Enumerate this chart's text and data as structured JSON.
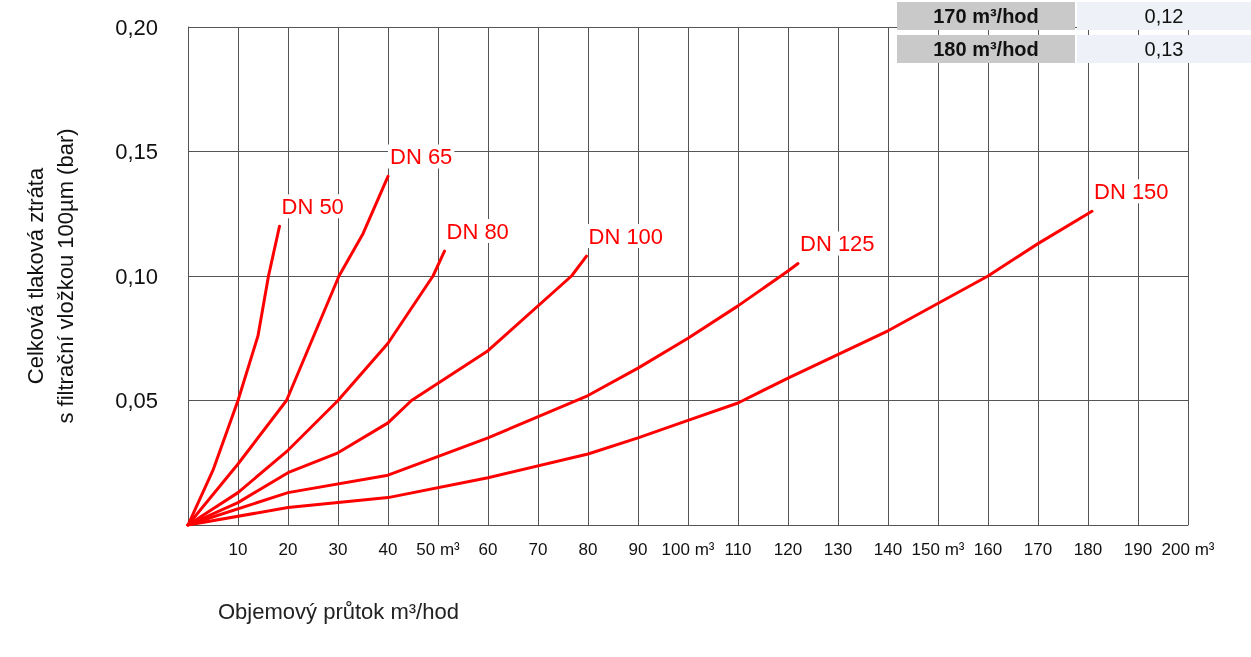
{
  "chart_data": {
    "type": "line",
    "xlabel": "Objemový průtok m³/hod",
    "ylabel": "Celková tlaková ztráta\ns filtrační vložkou 100µm (bar)",
    "xlim": [
      0,
      200
    ],
    "xticks": [
      {
        "value": 0,
        "label": null
      },
      10,
      20,
      30,
      40,
      {
        "value": 50,
        "label": "50 m³"
      },
      60,
      70,
      80,
      90,
      {
        "value": 100,
        "label": "100 m³"
      },
      110,
      120,
      130,
      140,
      {
        "value": 150,
        "label": "150 m³"
      },
      160,
      170,
      180,
      190,
      {
        "value": 200,
        "label": "200 m³"
      }
    ],
    "ylim": [
      0,
      0.2
    ],
    "yticks": [
      {
        "value": 0,
        "label": null
      },
      {
        "value": 0.05,
        "label": "0,05"
      },
      {
        "value": 0.1,
        "label": "0,10"
      },
      {
        "value": 0.15,
        "label": "0,15"
      },
      {
        "value": 0.2,
        "label": "0,20"
      }
    ],
    "grid": true,
    "legend": false,
    "marker": "none",
    "line_style": "solid",
    "annotations": [
      "170 m³/hod",
      "0,12",
      "180 m³/hod",
      "0,13"
    ],
    "series": [
      {
        "name": "DN 50",
        "color": "#ff0000",
        "x": [
          0,
          5,
          10,
          14,
          16.1,
          18.3
        ],
        "values": [
          0,
          0.022,
          0.05,
          0.076,
          0.1,
          0.12
        ]
      },
      {
        "name": "DN 65",
        "color": "#ff0000",
        "x": [
          0,
          10,
          19.7,
          30.2,
          35,
          40
        ],
        "values": [
          0,
          0.0245,
          0.05,
          0.1,
          0.117,
          0.14
        ]
      },
      {
        "name": "DN 80",
        "color": "#ff0000",
        "x": [
          0,
          10,
          20,
          30,
          40,
          49,
          51.3
        ],
        "values": [
          0,
          0.013,
          0.03,
          0.05,
          0.073,
          0.1,
          0.11
        ]
      },
      {
        "name": "DN 100",
        "color": "#ff0000",
        "x": [
          0,
          10,
          20,
          30,
          40,
          44.7,
          60,
          76.7,
          79.7
        ],
        "values": [
          0,
          0.009,
          0.021,
          0.029,
          0.041,
          0.05,
          0.07,
          0.1,
          0.108
        ]
      },
      {
        "name": "DN 125",
        "color": "#ff0000",
        "x": [
          0,
          20,
          40,
          60,
          80,
          90,
          100,
          110,
          120,
          122
        ],
        "values": [
          0,
          0.013,
          0.02,
          0.035,
          0.052,
          0.063,
          0.075,
          0.088,
          0.102,
          0.105
        ]
      },
      {
        "name": "DN 150",
        "color": "#ff0000",
        "x": [
          0,
          20,
          40,
          60,
          80,
          90,
          100,
          110,
          120,
          140,
          160,
          170,
          180.8
        ],
        "values": [
          0,
          0.007,
          0.011,
          0.019,
          0.0285,
          0.035,
          0.042,
          0.049,
          0.059,
          0.078,
          0.1,
          0.113,
          0.126
        ]
      }
    ]
  }
}
